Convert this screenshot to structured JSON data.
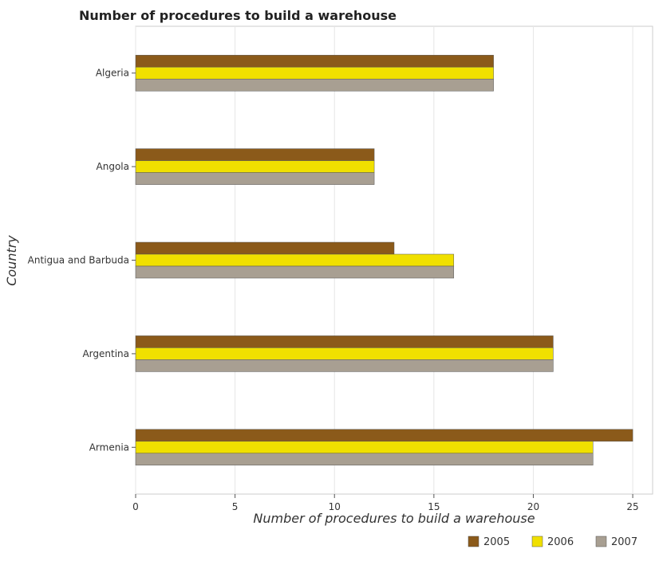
{
  "chart_data": {
    "type": "bar",
    "orientation": "horizontal",
    "title": "Number of procedures to build a warehouse",
    "xlabel": "Number of procedures to build a warehouse",
    "ylabel": "Country",
    "categories": [
      "Algeria",
      "Angola",
      "Antigua and Barbuda",
      "Argentina",
      "Armenia"
    ],
    "series": [
      {
        "name": "2005",
        "color": "#8b5a1a",
        "values": [
          18,
          12,
          13,
          21,
          25
        ]
      },
      {
        "name": "2006",
        "color": "#f0e000",
        "values": [
          18,
          12,
          16,
          21,
          23
        ]
      },
      {
        "name": "2007",
        "color": "#a89f92",
        "values": [
          18,
          12,
          16,
          21,
          23
        ]
      }
    ],
    "xlim": [
      0,
      26
    ],
    "xticks": [
      0,
      5,
      10,
      15,
      20,
      25
    ],
    "grid": true,
    "legend_position": "bottom-right"
  }
}
